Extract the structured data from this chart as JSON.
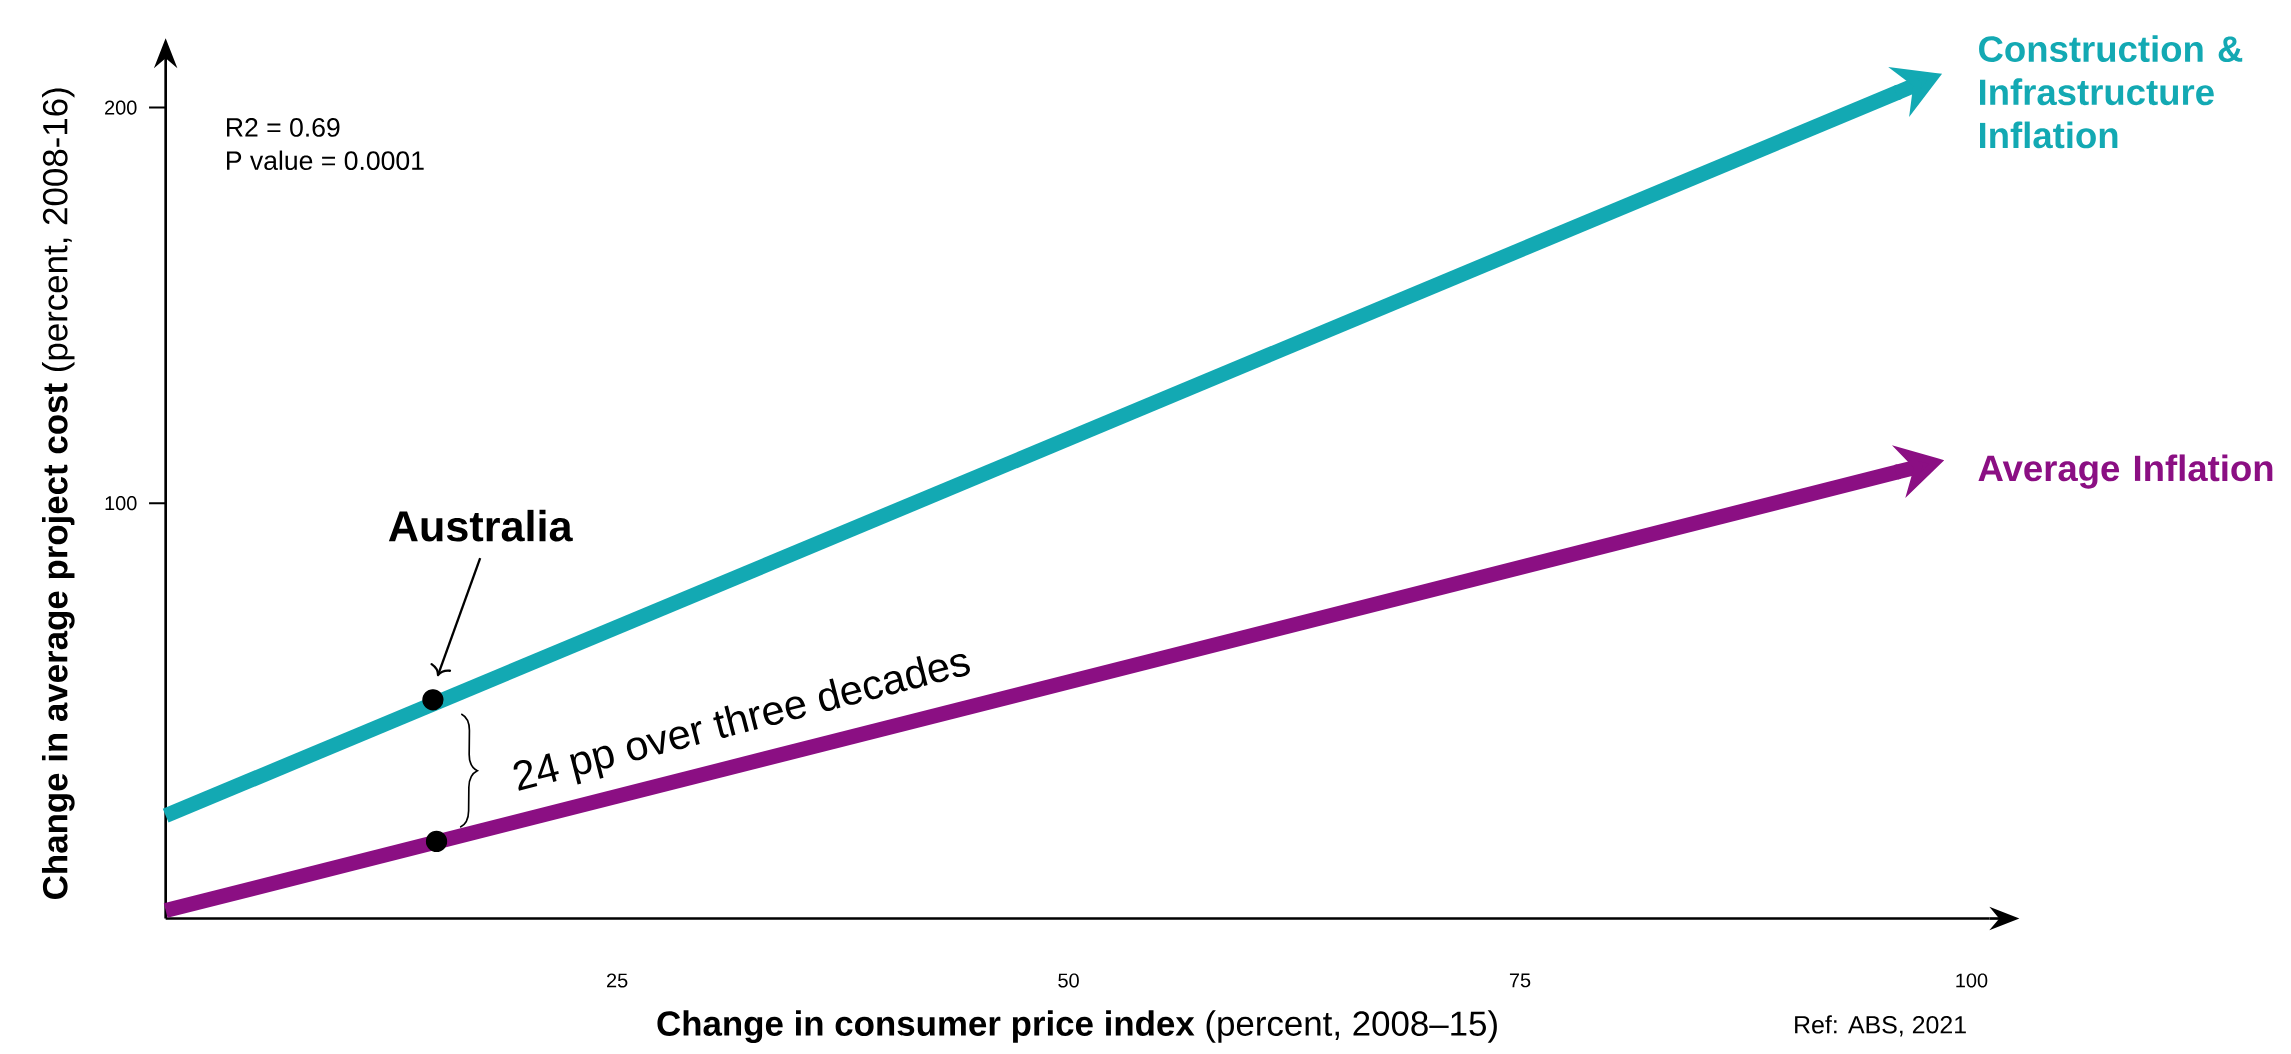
{
  "chart_data": {
    "type": "line",
    "xlabel": "**Change in consumer price index** (percent, 2008–15)",
    "ylabel": "**Change in average project cost** (percent, 2008-16)",
    "xlim": [
      0,
      101
    ],
    "ylim": [
      -5,
      210
    ],
    "xticks": [
      25,
      50,
      75,
      100
    ],
    "yticks": [
      100,
      200
    ],
    "series": [
      {
        "name": "Construction & Infrastructure Inflation",
        "color": "#13a9b3",
        "x": [
          0,
          96
        ],
        "values": [
          21,
          204
        ]
      },
      {
        "name": "Average Inflation",
        "color": "#8b0f83",
        "x": [
          0,
          96
        ],
        "values": [
          -3,
          108
        ]
      },
      {
        "type": "scatter",
        "color": "#000000",
        "x": [
          14.8,
          15
        ],
        "values": [
          50.3,
          14.5
        ]
      }
    ],
    "annotations": [
      "Australia",
      "R2 = 0.69",
      "P value = 0.0001",
      {
        "text": "24 pp over three decades",
        "x": 15,
        "y": 14.5
      },
      "Ref: ABS, 2021"
    ],
    "legend": "right"
  }
}
